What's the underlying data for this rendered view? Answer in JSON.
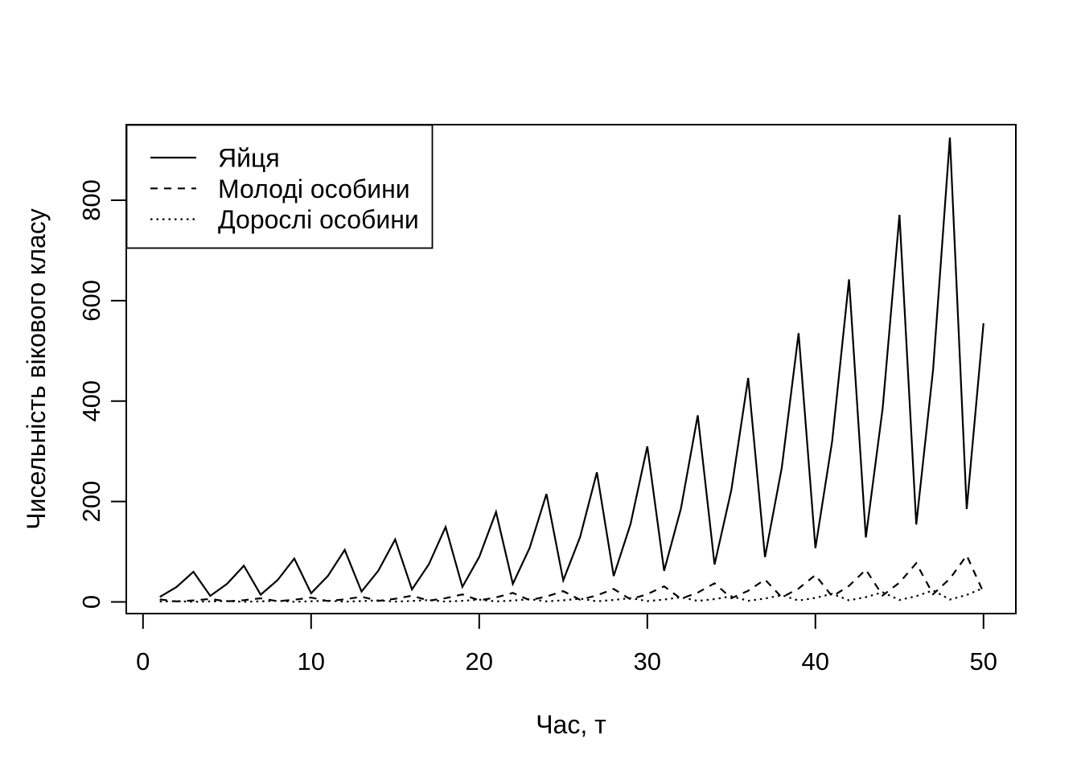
{
  "figure": {
    "background": "#ffffff",
    "foreground": "#000000"
  },
  "chart_data": {
    "type": "line",
    "title": "",
    "xlabel": "Час, т",
    "ylabel": "Чисельність вікового класу",
    "grid": false,
    "legend_position": "topleft",
    "line_color": "#000000",
    "xlim": [
      0,
      52
    ],
    "ylim": [
      0,
      950
    ],
    "x_ticks": [
      0,
      10,
      20,
      30,
      40,
      50
    ],
    "y_ticks": [
      0,
      200,
      400,
      600,
      800
    ],
    "x": [
      1,
      2,
      3,
      4,
      5,
      6,
      7,
      8,
      9,
      10,
      11,
      12,
      13,
      14,
      15,
      16,
      17,
      18,
      19,
      20,
      21,
      22,
      23,
      24,
      25,
      26,
      27,
      28,
      29,
      30,
      31,
      32,
      33,
      34,
      35,
      36,
      37,
      38,
      39,
      40,
      41,
      42,
      43,
      44,
      45,
      46,
      47,
      48,
      49,
      50
    ],
    "series": [
      {
        "name": "Яйця",
        "line_style": "solid",
        "values": [
          10,
          30,
          60,
          12,
          36,
          72,
          14.4,
          43.2,
          86.4,
          17.3,
          51.8,
          103.7,
          20.7,
          62.2,
          124.4,
          24.9,
          74.6,
          149.3,
          29.9,
          89.6,
          179.3,
          35.9,
          107.6,
          215.1,
          43,
          129.1,
          258.2,
          51.6,
          154.9,
          309.8,
          62,
          185.9,
          371.8,
          74.4,
          223.1,
          446.1,
          89.2,
          267.7,
          535.3,
          107.1,
          321.2,
          642.4,
          128.5,
          385.4,
          770.9,
          154.2,
          462.5,
          925,
          185,
          555
        ]
      },
      {
        "name": "Молоді особини",
        "line_style": "dashed",
        "values": [
          5,
          1,
          3,
          6,
          1.2,
          3.6,
          7.2,
          1.4,
          4.3,
          8.6,
          1.7,
          5.2,
          10.4,
          2.1,
          6.2,
          12.4,
          2.5,
          7.5,
          14.9,
          3,
          9,
          17.9,
          3.6,
          10.8,
          21.5,
          4.3,
          12.9,
          25.8,
          5.2,
          15.5,
          31,
          6.2,
          18.6,
          37.2,
          7.4,
          22.3,
          44.6,
          8.9,
          26.8,
          53.5,
          10.7,
          32.1,
          64.2,
          12.8,
          38.5,
          77.1,
          15.4,
          46.3,
          92.5,
          18.5
        ]
      },
      {
        "name": "Дорослі особини",
        "line_style": "dotted",
        "values": [
          0.8,
          1.5,
          0.3,
          0.9,
          1.8,
          0.4,
          1.1,
          2.2,
          0.4,
          1.3,
          2.6,
          0.5,
          1.6,
          3.1,
          0.6,
          1.9,
          3.7,
          0.7,
          2.2,
          4.5,
          0.9,
          2.7,
          5.4,
          1.1,
          3.2,
          6.5,
          1.3,
          3.9,
          7.7,
          1.6,
          4.6,
          9.3,
          1.9,
          5.6,
          11.2,
          2.2,
          6.7,
          13.4,
          2.7,
          8,
          16.1,
          3.2,
          9.6,
          19.3,
          3.9,
          11.6,
          23.1,
          4.6,
          13.9,
          27.8
        ]
      }
    ]
  }
}
